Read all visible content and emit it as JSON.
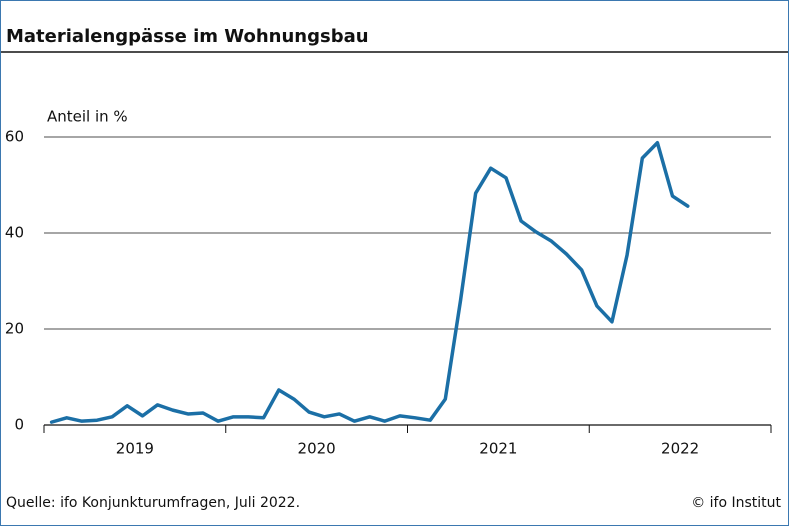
{
  "chart_data": {
    "type": "line",
    "title": "Materialengpässe im Wohnungsbau",
    "y_label": "Anteil in %",
    "source": "Quelle: ifo Konjunkturumfragen, Juli 2022.",
    "credit": "© ifo Institut",
    "x": [
      2019.042,
      2019.125,
      2019.208,
      2019.292,
      2019.375,
      2019.458,
      2019.542,
      2019.625,
      2019.708,
      2019.792,
      2019.875,
      2019.958,
      2020.042,
      2020.125,
      2020.208,
      2020.292,
      2020.375,
      2020.458,
      2020.542,
      2020.625,
      2020.708,
      2020.792,
      2020.875,
      2020.958,
      2021.042,
      2021.125,
      2021.208,
      2021.292,
      2021.375,
      2021.458,
      2021.542,
      2021.625,
      2021.708,
      2021.792,
      2021.875,
      2021.958,
      2022.042,
      2022.125,
      2022.208,
      2022.292,
      2022.375,
      2022.458,
      2022.542
    ],
    "series": [
      {
        "color": "#1b6fa6",
        "values": [
          0.6,
          1.5,
          0.8,
          1.0,
          1.7,
          4.0,
          1.9,
          4.2,
          3.1,
          2.3,
          2.5,
          0.8,
          1.7,
          1.7,
          1.5,
          7.3,
          5.4,
          2.7,
          1.7,
          2.3,
          0.8,
          1.7,
          0.8,
          1.9,
          1.5,
          1.0,
          5.4,
          26,
          48.3,
          53.5,
          51.5,
          42.5,
          40.2,
          38.3,
          35.6,
          32.3,
          24.8,
          21.5,
          35.4,
          55.6,
          58.8,
          47.7,
          45.6
        ]
      }
    ],
    "xlim": [
      2019,
      2023
    ],
    "xticks": [
      2019,
      2020,
      2021,
      2022,
      2023
    ],
    "xlabels": [
      {
        "value": 2019.5,
        "label": "2019"
      },
      {
        "value": 2020.5,
        "label": "2020"
      },
      {
        "value": 2021.5,
        "label": "2021"
      },
      {
        "value": 2022.5,
        "label": "2022"
      }
    ],
    "ylim": [
      0,
      70
    ],
    "yticks": [
      0,
      20,
      40,
      60
    ],
    "grid": true
  }
}
